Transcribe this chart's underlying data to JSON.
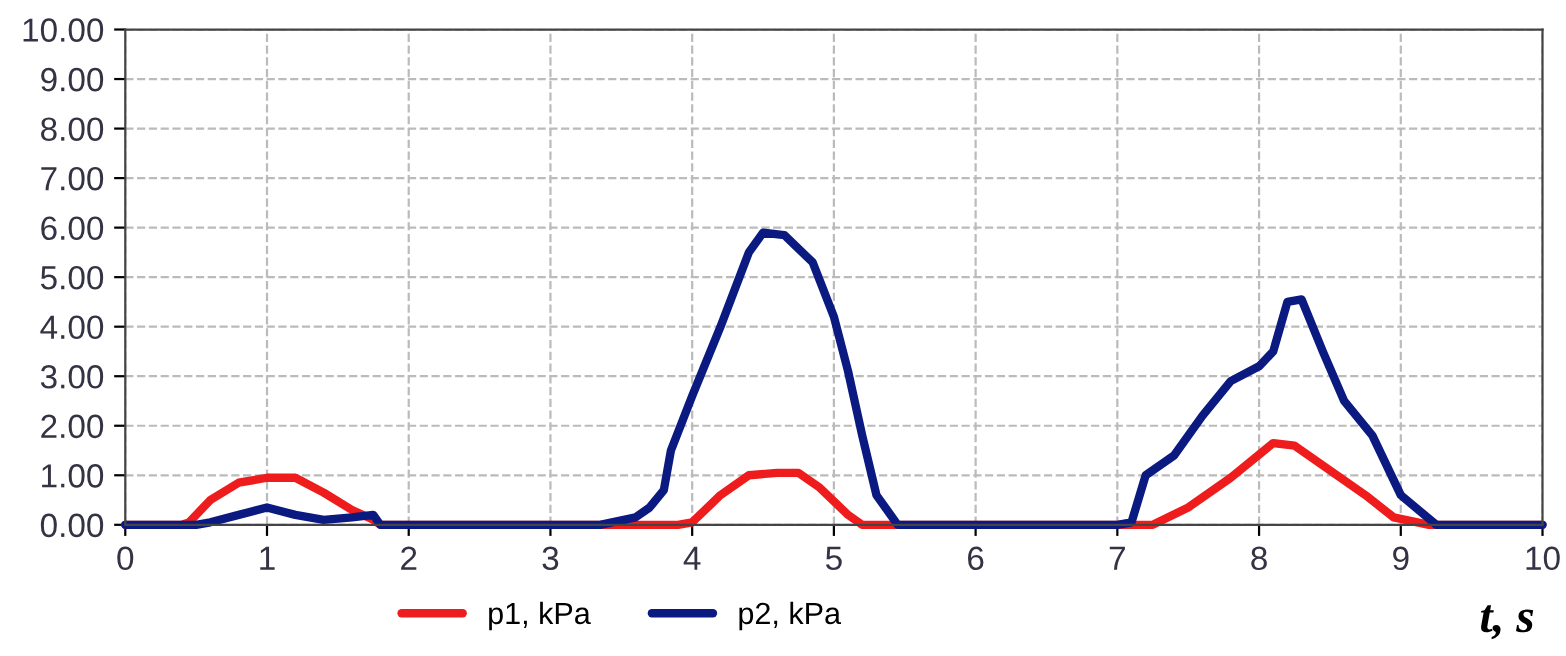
{
  "chart_data": {
    "type": "line",
    "xlabel": "t, s",
    "xlim": [
      0,
      10
    ],
    "ylim": [
      0,
      10
    ],
    "xticks": [
      0,
      1,
      2,
      3,
      4,
      5,
      6,
      7,
      8,
      9,
      10
    ],
    "yticks": [
      {
        "value": 0,
        "label": "0.00"
      },
      {
        "value": 1,
        "label": "1.00"
      },
      {
        "value": 2,
        "label": "2.00"
      },
      {
        "value": 3,
        "label": "3.00"
      },
      {
        "value": 4,
        "label": "4.00"
      },
      {
        "value": 5,
        "label": "5.00"
      },
      {
        "value": 6,
        "label": "6.00"
      },
      {
        "value": 7,
        "label": "7.00"
      },
      {
        "value": 8,
        "label": "8.00"
      },
      {
        "value": 9,
        "label": "9.00"
      },
      {
        "value": 10,
        "label": "10.00"
      }
    ],
    "grid": true,
    "legend": "bottom",
    "marker": "none",
    "line_style": "solid",
    "series": [
      {
        "name": "p1, kPa",
        "color": "#ee1c1c",
        "x": [
          0,
          0.4,
          0.45,
          0.6,
          0.8,
          1.0,
          1.2,
          1.4,
          1.6,
          1.75,
          1.8,
          3.9,
          4.0,
          4.2,
          4.4,
          4.6,
          4.75,
          4.9,
          5.1,
          5.2,
          7.25,
          7.5,
          7.8,
          8.1,
          8.25,
          8.5,
          8.75,
          8.95,
          9.2,
          10
        ],
        "values": [
          0,
          0,
          0.05,
          0.5,
          0.85,
          0.95,
          0.95,
          0.65,
          0.3,
          0.1,
          0,
          0,
          0.05,
          0.6,
          1.0,
          1.05,
          1.05,
          0.75,
          0.2,
          0,
          0,
          0.35,
          0.95,
          1.65,
          1.6,
          1.1,
          0.6,
          0.15,
          0,
          0
        ]
      },
      {
        "name": "p2, kPa",
        "color": "#0b1a80",
        "x": [
          0,
          0.5,
          0.6,
          0.8,
          1.0,
          1.2,
          1.4,
          1.6,
          1.75,
          1.8,
          3.35,
          3.6,
          3.7,
          3.8,
          3.85,
          4.0,
          4.2,
          4.4,
          4.5,
          4.65,
          4.85,
          5.0,
          5.1,
          5.2,
          5.3,
          5.45,
          7.0,
          7.1,
          7.2,
          7.4,
          7.6,
          7.8,
          8.0,
          8.1,
          8.2,
          8.3,
          8.45,
          8.6,
          8.8,
          9.0,
          9.25,
          10
        ],
        "values": [
          0,
          0,
          0.05,
          0.2,
          0.35,
          0.2,
          0.1,
          0.15,
          0.2,
          0,
          0,
          0.15,
          0.35,
          0.7,
          1.5,
          2.6,
          4.0,
          5.5,
          5.9,
          5.85,
          5.3,
          4.2,
          3.1,
          1.8,
          0.6,
          0,
          0,
          0.05,
          1.0,
          1.4,
          2.2,
          2.9,
          3.2,
          3.5,
          4.5,
          4.55,
          3.5,
          2.5,
          1.8,
          0.6,
          0,
          0
        ]
      }
    ]
  }
}
